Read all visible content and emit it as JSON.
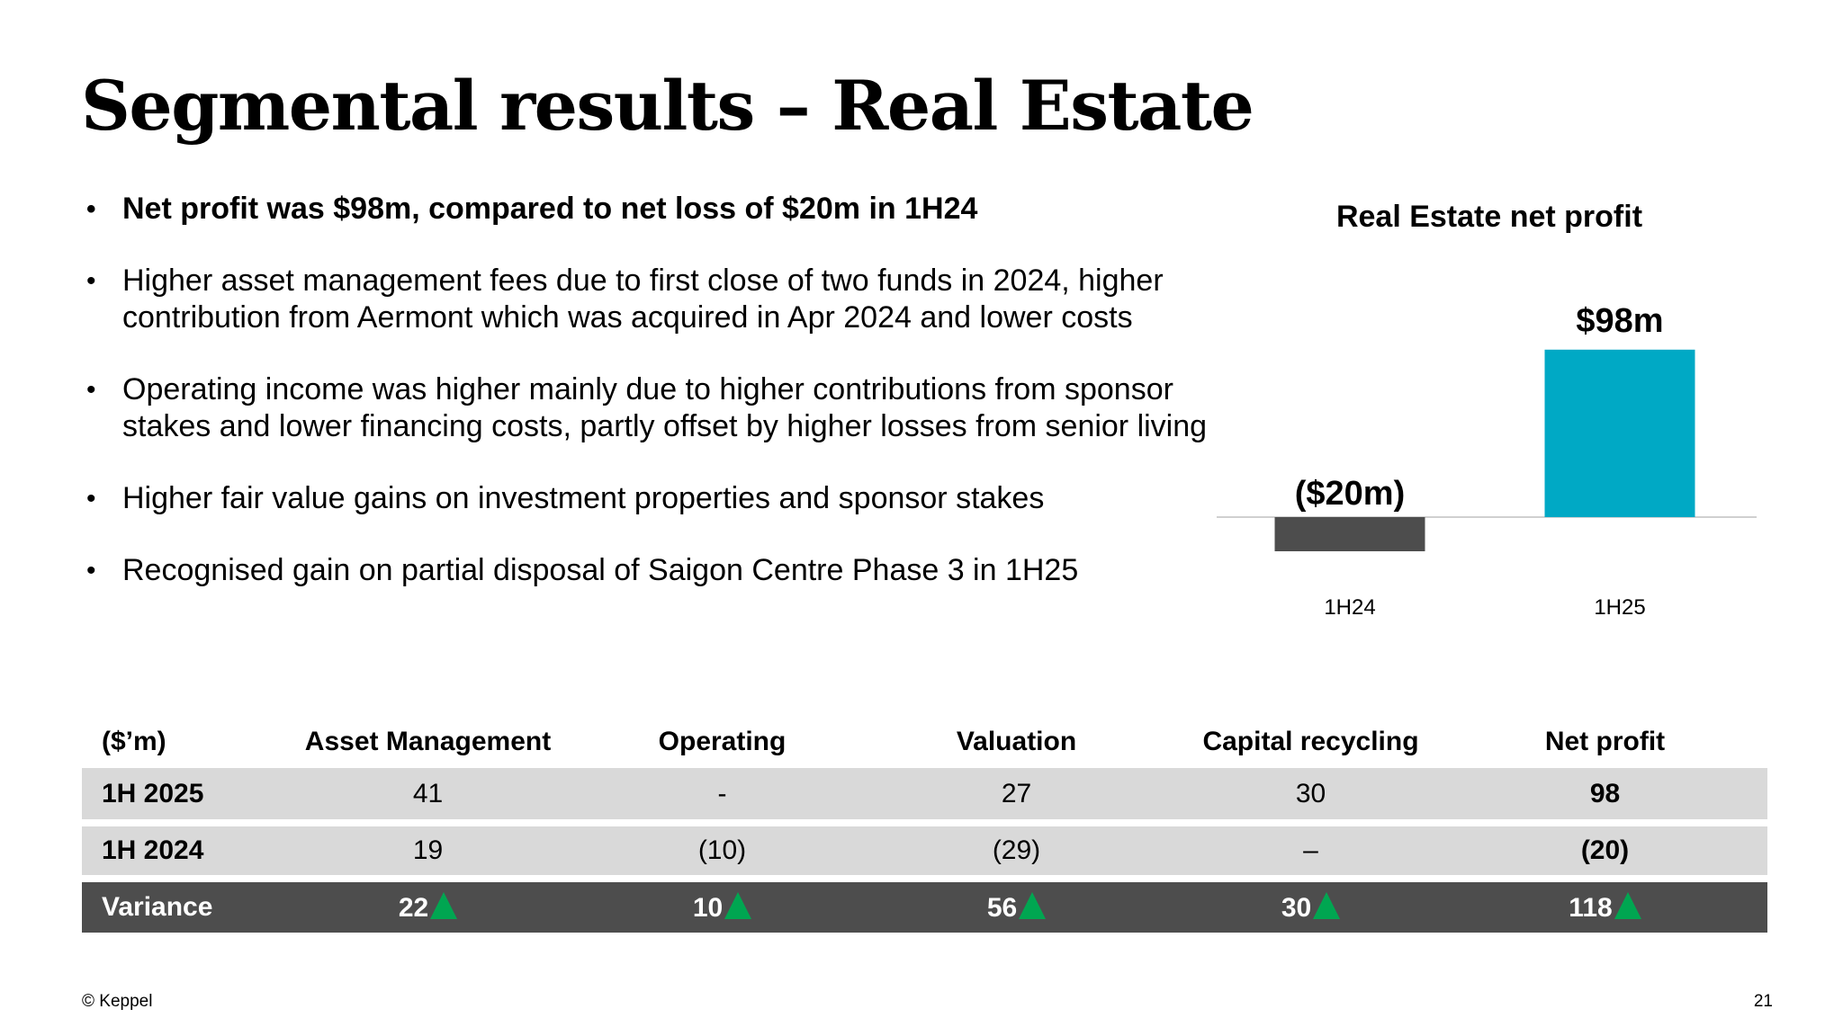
{
  "title": "Segmental results – Real Estate",
  "bullets": [
    "Net profit was $98m, compared to net loss of $20m in 1H24",
    "Higher asset management fees due to first close of two funds in 2024, higher contribution from Aermont which was acquired in Apr 2024 and lower costs",
    "Operating income was higher mainly due to higher contributions from sponsor stakes and lower financing costs, partly offset by higher losses from senior living",
    "Higher fair value gains on investment properties and sponsor stakes",
    "Recognised gain on partial disposal of Saigon Centre Phase 3 in 1H25"
  ],
  "chart_data": {
    "type": "bar",
    "title": "Real Estate net profit",
    "categories": [
      "1H24",
      "1H25"
    ],
    "values": [
      -20,
      98
    ],
    "data_labels": [
      "($20m)",
      "$98m"
    ],
    "colors": [
      "#4d4d4d",
      "#00a9c5"
    ],
    "xlabel": "",
    "ylabel": "",
    "ylim": [
      -25,
      100
    ],
    "grid": false
  },
  "table": {
    "headers": [
      "($’m)",
      "Asset Management",
      "Operating",
      "Valuation",
      "Capital recycling",
      "Net profit"
    ],
    "rows": [
      {
        "label": "1H 2025",
        "cells": [
          "41",
          "-",
          "27",
          "30",
          "98"
        ]
      },
      {
        "label": "1H 2024",
        "cells": [
          "19",
          "(10)",
          "(29)",
          "–",
          "(20)"
        ]
      },
      {
        "label": "Variance",
        "cells": [
          "22",
          "10",
          "56",
          "30",
          "118"
        ]
      }
    ],
    "variance_indicator": "up-triangle-icon",
    "indicator_color": "#00a651"
  },
  "footer": {
    "copyright": "© Keppel",
    "page_number": "21"
  }
}
